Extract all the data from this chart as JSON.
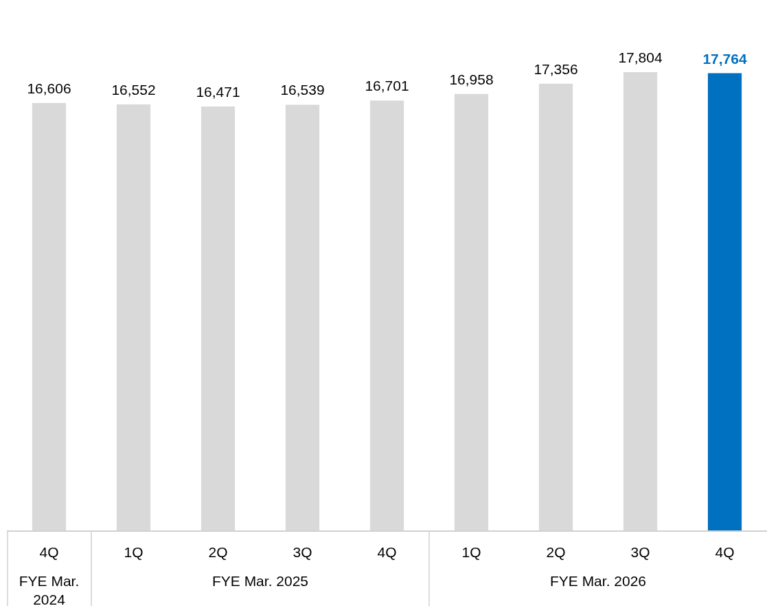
{
  "chart_data": {
    "type": "bar",
    "categories": [
      "4Q",
      "1Q",
      "2Q",
      "3Q",
      "4Q",
      "1Q",
      "2Q",
      "3Q",
      "4Q"
    ],
    "values": [
      16606,
      16552,
      16471,
      16539,
      16701,
      16958,
      17356,
      17804,
      17764
    ],
    "colors": [
      "#d9d9d9",
      "#d9d9d9",
      "#d9d9d9",
      "#d9d9d9",
      "#d9d9d9",
      "#d9d9d9",
      "#d9d9d9",
      "#d9d9d9",
      "#0070c0"
    ],
    "value_labels": [
      "16,606",
      "16,552",
      "16,471",
      "16,539",
      "16,701",
      "16,958",
      "17,356",
      "17,804",
      "17,764"
    ],
    "annotations": [
      "FYE Mar. 2024",
      "FYE Mar. 2025",
      "FYE Mar. 2026"
    ]
  }
}
